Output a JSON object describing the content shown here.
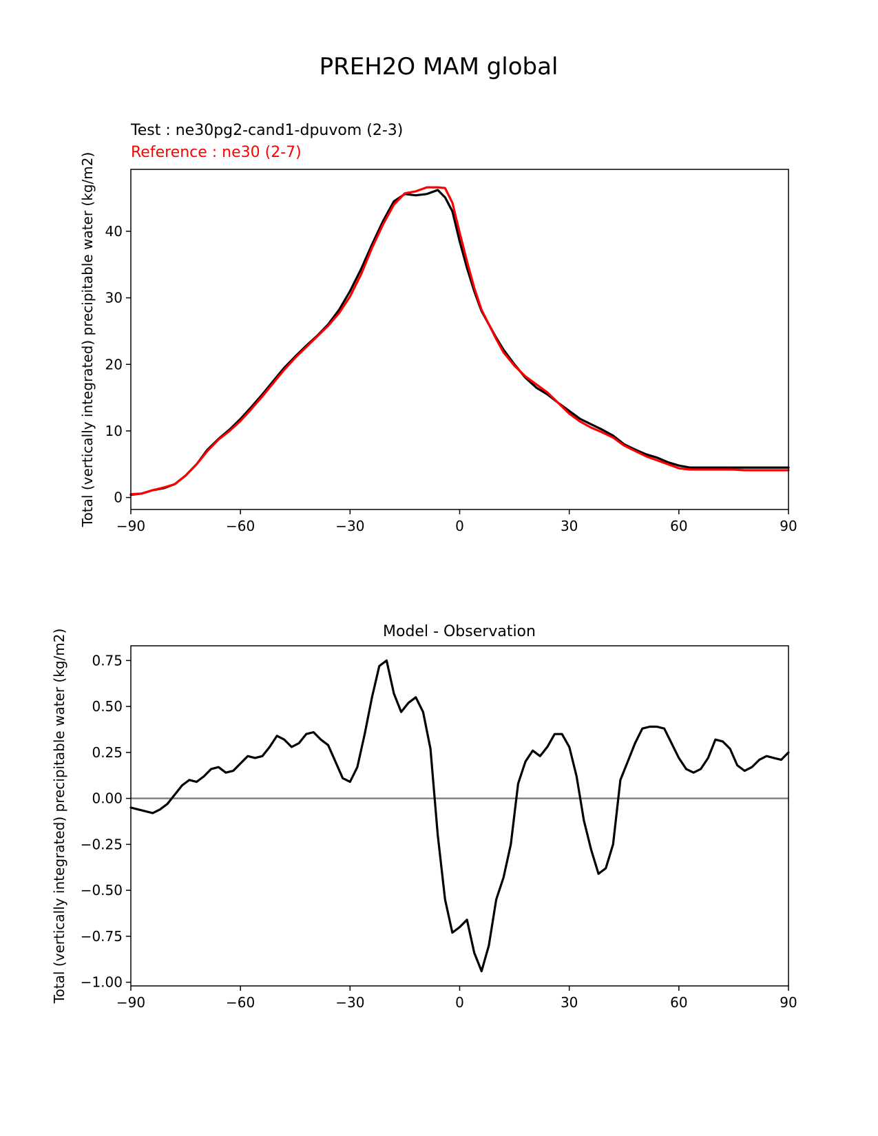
{
  "figure": {
    "title": "PREH2O MAM global"
  },
  "chart_data": [
    {
      "type": "line",
      "id": "top",
      "test_label": "Test : ne30pg2-cand1-dpuvom (2-3)",
      "reference_label": "Reference : ne30 (2-7)",
      "title": "",
      "xlabel": "",
      "ylabel": "Total (vertically integrated) precipitable water (kg/m2)",
      "xlim": [
        -90,
        90
      ],
      "ylim": [
        -1.8,
        49.3
      ],
      "xticks": [
        -90,
        -60,
        -30,
        0,
        30,
        60,
        90
      ],
      "xtick_labels": [
        "−90",
        "−60",
        "−30",
        "0",
        "30",
        "60",
        "90"
      ],
      "yticks": [
        0,
        10,
        20,
        30,
        40
      ],
      "ytick_labels": [
        "0",
        "10",
        "20",
        "30",
        "40"
      ],
      "grid": false,
      "series": [
        {
          "name": "Test : ne30pg2-cand1-dpuvom (2-3)",
          "color": "#000000",
          "x": [
            -90,
            -87,
            -84,
            -81,
            -78,
            -75,
            -72,
            -69,
            -66,
            -63,
            -60,
            -57,
            -54,
            -51,
            -48,
            -45,
            -42,
            -39,
            -36,
            -33,
            -30,
            -27,
            -24,
            -21,
            -18,
            -15,
            -12,
            -9,
            -6,
            -4,
            -2,
            0,
            2,
            4,
            6,
            8,
            10,
            12,
            15,
            18,
            21,
            24,
            27,
            30,
            33,
            36,
            39,
            42,
            45,
            48,
            51,
            54,
            57,
            60,
            63,
            66,
            69,
            72,
            75,
            78,
            81,
            84,
            87,
            90
          ],
          "values": [
            0.4,
            0.6,
            1.1,
            1.4,
            2.0,
            3.3,
            5.0,
            7.2,
            8.8,
            10.2,
            11.8,
            13.6,
            15.5,
            17.5,
            19.5,
            21.2,
            22.8,
            24.3,
            26.0,
            28.2,
            31.0,
            34.3,
            38.0,
            41.5,
            44.5,
            45.6,
            45.4,
            45.6,
            46.2,
            45.1,
            43.0,
            38.5,
            34.5,
            31.0,
            28.0,
            26.0,
            24.0,
            22.2,
            20.0,
            18.0,
            16.5,
            15.5,
            14.2,
            13.0,
            11.8,
            11.0,
            10.2,
            9.3,
            8.0,
            7.2,
            6.5,
            6.0,
            5.3,
            4.8,
            4.5,
            4.5,
            4.5,
            4.5,
            4.5,
            4.5,
            4.5,
            4.5,
            4.5,
            4.5
          ]
        },
        {
          "name": "Reference : ne30 (2-7)",
          "color": "#ff0000",
          "x": [
            -90,
            -87,
            -84,
            -81,
            -78,
            -75,
            -72,
            -69,
            -66,
            -63,
            -60,
            -57,
            -54,
            -51,
            -48,
            -45,
            -42,
            -39,
            -36,
            -33,
            -30,
            -27,
            -24,
            -21,
            -18,
            -15,
            -12,
            -9,
            -6,
            -4,
            -2,
            0,
            2,
            4,
            6,
            8,
            10,
            12,
            15,
            18,
            21,
            24,
            27,
            30,
            33,
            36,
            39,
            42,
            45,
            48,
            51,
            54,
            57,
            60,
            63,
            66,
            69,
            72,
            75,
            78,
            81,
            84,
            87,
            90
          ],
          "values": [
            0.5,
            0.6,
            1.1,
            1.5,
            2.0,
            3.3,
            5.0,
            7.0,
            8.7,
            10.0,
            11.5,
            13.3,
            15.2,
            17.2,
            19.2,
            21.0,
            22.6,
            24.2,
            25.8,
            27.7,
            30.2,
            33.5,
            37.5,
            41.0,
            44.0,
            45.7,
            46.0,
            46.6,
            46.6,
            46.5,
            44.3,
            39.8,
            35.5,
            31.5,
            28.2,
            26.0,
            23.8,
            21.8,
            19.8,
            18.2,
            17.0,
            15.8,
            14.2,
            12.6,
            11.4,
            10.5,
            9.8,
            9.0,
            7.8,
            7.0,
            6.2,
            5.6,
            5.0,
            4.4,
            4.2,
            4.2,
            4.2,
            4.2,
            4.2,
            4.1,
            4.1,
            4.1,
            4.1,
            4.1
          ]
        }
      ]
    },
    {
      "type": "line",
      "id": "bottom",
      "title": "Model - Observation",
      "xlabel": "",
      "ylabel": "Total (vertically integrated) precipitable water (kg/m2)",
      "xlim": [
        -90,
        90
      ],
      "ylim": [
        -1.02,
        0.83
      ],
      "xticks": [
        -90,
        -60,
        -30,
        0,
        30,
        60,
        90
      ],
      "xtick_labels": [
        "−90",
        "−60",
        "−30",
        "0",
        "30",
        "60",
        "90"
      ],
      "yticks": [
        0.75,
        0.5,
        0.25,
        0.0,
        -0.25,
        -0.5,
        -0.75,
        -1.0
      ],
      "ytick_labels": [
        "0.75",
        "0.50",
        "0.25",
        "0.00",
        "−0.25",
        "−0.50",
        "−0.75",
        "−1.00"
      ],
      "grid": false,
      "zero_line": {
        "y": 0,
        "color": "#808080"
      },
      "series": [
        {
          "name": "Model - Observation",
          "color": "#000000",
          "x": [
            -90,
            -88,
            -86,
            -84,
            -82,
            -80,
            -78,
            -76,
            -74,
            -72,
            -70,
            -68,
            -66,
            -64,
            -62,
            -60,
            -58,
            -56,
            -54,
            -52,
            -50,
            -48,
            -46,
            -44,
            -42,
            -40,
            -38,
            -36,
            -34,
            -32,
            -30,
            -28,
            -26,
            -24,
            -22,
            -20,
            -18,
            -16,
            -14,
            -12,
            -10,
            -8,
            -6,
            -4,
            -2,
            0,
            2,
            4,
            6,
            8,
            10,
            12,
            14,
            16,
            18,
            20,
            22,
            24,
            26,
            28,
            30,
            32,
            34,
            36,
            38,
            40,
            42,
            44,
            46,
            48,
            50,
            52,
            54,
            56,
            58,
            60,
            62,
            64,
            66,
            68,
            70,
            72,
            74,
            76,
            78,
            80,
            82,
            84,
            86,
            88,
            90
          ],
          "values": [
            -0.05,
            -0.06,
            -0.07,
            -0.08,
            -0.06,
            -0.03,
            0.02,
            0.07,
            0.1,
            0.09,
            0.12,
            0.16,
            0.17,
            0.14,
            0.15,
            0.19,
            0.23,
            0.22,
            0.23,
            0.28,
            0.34,
            0.32,
            0.28,
            0.3,
            0.35,
            0.36,
            0.32,
            0.29,
            0.2,
            0.11,
            0.09,
            0.17,
            0.35,
            0.55,
            0.72,
            0.75,
            0.57,
            0.47,
            0.52,
            0.55,
            0.47,
            0.27,
            -0.2,
            -0.55,
            -0.73,
            -0.7,
            -0.66,
            -0.84,
            -0.94,
            -0.8,
            -0.55,
            -0.43,
            -0.25,
            0.08,
            0.2,
            0.26,
            0.23,
            0.28,
            0.35,
            0.35,
            0.28,
            0.12,
            -0.12,
            -0.28,
            -0.41,
            -0.38,
            -0.25,
            0.1,
            0.2,
            0.3,
            0.38,
            0.39,
            0.39,
            0.38,
            0.3,
            0.22,
            0.16,
            0.14,
            0.16,
            0.22,
            0.32,
            0.31,
            0.27,
            0.18,
            0.15,
            0.17,
            0.21,
            0.23,
            0.22,
            0.21,
            0.25
          ]
        }
      ]
    }
  ]
}
